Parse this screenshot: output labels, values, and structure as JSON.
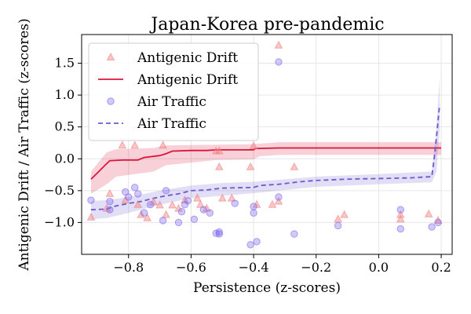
{
  "chart_data": {
    "type": "scatter",
    "title": "Japan-Korea pre-pandemic",
    "xlabel": "Persistence (z-scores)",
    "ylabel": "Antigenic Drift / Air Traffic (z-scores)",
    "xlim": [
      -0.95,
      0.235
    ],
    "ylim": [
      -1.5,
      1.95
    ],
    "xticks": [
      -0.8,
      -0.6,
      -0.4,
      -0.2,
      0.0,
      0.2
    ],
    "xtick_labels": [
      "−0.8",
      "−0.6",
      "−0.4",
      "−0.2",
      "0.0",
      "0.2"
    ],
    "yticks": [
      -1.0,
      -0.5,
      0.0,
      0.5,
      1.0,
      1.5
    ],
    "ytick_labels": [
      "−1.0",
      "−0.5",
      "0.0",
      "0.5",
      "1.0",
      "1.5"
    ],
    "grid": true,
    "legend_position": "top-left",
    "legend": [
      {
        "label": "Antigenic Drift",
        "kind": "marker-triangle",
        "color": "#f08080"
      },
      {
        "label": "Antigenic Drift",
        "kind": "line-solid",
        "color": "#dc143c"
      },
      {
        "label": "Air Traffic",
        "kind": "marker-circle",
        "color": "#7b68ee"
      },
      {
        "label": "Air Traffic",
        "kind": "line-dashed",
        "color": "#6a5acd"
      }
    ],
    "series": [
      {
        "name": "Antigenic Drift",
        "kind": "scatter",
        "marker": "triangle",
        "color": "#f08080",
        "points": [
          [
            -0.92,
            -0.92
          ],
          [
            -0.87,
            -0.78
          ],
          [
            -0.86,
            -0.55
          ],
          [
            -0.82,
            0.21
          ],
          [
            -0.81,
            -0.65
          ],
          [
            -0.78,
            0.21
          ],
          [
            -0.77,
            -0.72
          ],
          [
            -0.76,
            -0.88
          ],
          [
            -0.74,
            -0.93
          ],
          [
            -0.72,
            -0.68
          ],
          [
            -0.7,
            -0.73
          ],
          [
            -0.69,
            0.21
          ],
          [
            -0.68,
            -0.88
          ],
          [
            -0.66,
            -0.73
          ],
          [
            -0.64,
            -0.78
          ],
          [
            -0.62,
            -0.65
          ],
          [
            -0.58,
            -0.62
          ],
          [
            -0.57,
            -0.72
          ],
          [
            -0.55,
            -0.78
          ],
          [
            -0.52,
            0.12
          ],
          [
            -0.51,
            0.12
          ],
          [
            -0.51,
            -0.13
          ],
          [
            -0.5,
            -0.62
          ],
          [
            -0.47,
            -0.62
          ],
          [
            -0.41,
            -0.13
          ],
          [
            -0.4,
            0.2
          ],
          [
            -0.39,
            -0.72
          ],
          [
            -0.34,
            -0.72
          ],
          [
            -0.32,
            1.78
          ],
          [
            -0.32,
            -0.67
          ],
          [
            -0.27,
            -0.13
          ],
          [
            -0.13,
            -0.95
          ],
          [
            -0.11,
            -0.88
          ],
          [
            0.07,
            -0.88
          ],
          [
            0.07,
            -0.95
          ],
          [
            0.16,
            -0.87
          ],
          [
            0.19,
            -0.97
          ]
        ]
      },
      {
        "name": "Antigenic Drift",
        "kind": "line",
        "color": "#dc143c",
        "line": [
          [
            -0.92,
            -0.32
          ],
          [
            -0.895,
            -0.2
          ],
          [
            -0.875,
            -0.1
          ],
          [
            -0.86,
            -0.03
          ],
          [
            -0.82,
            -0.02
          ],
          [
            -0.77,
            -0.02
          ],
          [
            -0.75,
            0.02
          ],
          [
            -0.7,
            0.05
          ],
          [
            -0.68,
            0.08
          ],
          [
            -0.66,
            0.12
          ],
          [
            -0.6,
            0.13
          ],
          [
            -0.55,
            0.13
          ],
          [
            -0.52,
            0.14
          ],
          [
            -0.4,
            0.14
          ],
          [
            -0.395,
            0.16
          ],
          [
            -0.32,
            0.17
          ],
          [
            -0.2,
            0.17
          ],
          [
            0.0,
            0.17
          ],
          [
            0.2,
            0.17
          ]
        ],
        "band_upper": [
          [
            -0.92,
            -0.2
          ],
          [
            -0.87,
            0.1
          ],
          [
            -0.84,
            0.15
          ],
          [
            -0.72,
            0.17
          ],
          [
            -0.68,
            0.21
          ],
          [
            -0.52,
            0.22
          ],
          [
            -0.4,
            0.23
          ],
          [
            -0.32,
            0.26
          ],
          [
            0.0,
            0.26
          ],
          [
            0.2,
            0.26
          ]
        ],
        "band_lower": [
          [
            -0.92,
            -0.55
          ],
          [
            -0.87,
            -0.4
          ],
          [
            -0.84,
            -0.28
          ],
          [
            -0.72,
            -0.2
          ],
          [
            -0.68,
            -0.1
          ],
          [
            -0.52,
            -0.02
          ],
          [
            -0.4,
            -0.01
          ],
          [
            -0.38,
            0.04
          ],
          [
            -0.32,
            0.06
          ],
          [
            0.0,
            0.06
          ],
          [
            0.2,
            0.06
          ]
        ]
      },
      {
        "name": "Air Traffic",
        "kind": "scatter",
        "marker": "circle",
        "color": "#7b68ee",
        "points": [
          [
            -0.92,
            -0.65
          ],
          [
            -0.86,
            -0.67
          ],
          [
            -0.86,
            -0.8
          ],
          [
            -0.81,
            -0.52
          ],
          [
            -0.8,
            -0.6
          ],
          [
            -0.78,
            -0.45
          ],
          [
            -0.77,
            -0.55
          ],
          [
            -0.75,
            -0.85
          ],
          [
            -0.73,
            -0.72
          ],
          [
            -0.69,
            -0.97
          ],
          [
            -0.68,
            -0.5
          ],
          [
            -0.64,
            -1.0
          ],
          [
            -0.63,
            -0.83
          ],
          [
            -0.62,
            -0.72
          ],
          [
            -0.61,
            -0.66
          ],
          [
            -0.59,
            -0.95
          ],
          [
            -0.56,
            -0.8
          ],
          [
            -0.54,
            -0.85
          ],
          [
            -0.52,
            -1.17
          ],
          [
            -0.51,
            -1.15
          ],
          [
            -0.51,
            -1.18
          ],
          [
            -0.46,
            -0.7
          ],
          [
            -0.41,
            -1.35
          ],
          [
            -0.4,
            -0.75
          ],
          [
            -0.4,
            -0.85
          ],
          [
            -0.39,
            -1.3
          ],
          [
            -0.32,
            -0.6
          ],
          [
            -0.32,
            1.52
          ],
          [
            -0.27,
            -1.18
          ],
          [
            -0.13,
            -1.05
          ],
          [
            0.07,
            -0.8
          ],
          [
            0.07,
            -1.1
          ],
          [
            0.17,
            -1.07
          ],
          [
            0.19,
            -1.0
          ]
        ]
      },
      {
        "name": "Air Traffic",
        "kind": "line",
        "color": "#6a5acd",
        "line": [
          [
            -0.92,
            -0.8
          ],
          [
            -0.87,
            -0.79
          ],
          [
            -0.84,
            -0.74
          ],
          [
            -0.8,
            -0.7
          ],
          [
            -0.76,
            -0.67
          ],
          [
            -0.72,
            -0.62
          ],
          [
            -0.68,
            -0.58
          ],
          [
            -0.64,
            -0.55
          ],
          [
            -0.6,
            -0.5
          ],
          [
            -0.55,
            -0.49
          ],
          [
            -0.5,
            -0.46
          ],
          [
            -0.4,
            -0.45
          ],
          [
            -0.38,
            -0.42
          ],
          [
            -0.32,
            -0.4
          ],
          [
            -0.25,
            -0.36
          ],
          [
            -0.2,
            -0.34
          ],
          [
            -0.1,
            -0.32
          ],
          [
            0.0,
            -0.31
          ],
          [
            0.1,
            -0.3
          ],
          [
            0.17,
            -0.28
          ],
          [
            0.18,
            0.1
          ],
          [
            0.195,
            0.85
          ]
        ],
        "band_upper": [
          [
            -0.92,
            -0.66
          ],
          [
            -0.87,
            -0.65
          ],
          [
            -0.8,
            -0.6
          ],
          [
            -0.7,
            -0.5
          ],
          [
            -0.6,
            -0.42
          ],
          [
            -0.5,
            -0.38
          ],
          [
            -0.4,
            -0.36
          ],
          [
            -0.32,
            -0.33
          ],
          [
            -0.2,
            -0.28
          ],
          [
            0.0,
            -0.24
          ],
          [
            0.17,
            -0.2
          ],
          [
            0.185,
            0.5
          ],
          [
            0.195,
            1.28
          ]
        ],
        "band_lower": [
          [
            -0.92,
            -0.95
          ],
          [
            -0.87,
            -0.93
          ],
          [
            -0.8,
            -0.85
          ],
          [
            -0.7,
            -0.72
          ],
          [
            -0.6,
            -0.62
          ],
          [
            -0.5,
            -0.58
          ],
          [
            -0.4,
            -0.54
          ],
          [
            -0.32,
            -0.5
          ],
          [
            -0.2,
            -0.44
          ],
          [
            0.0,
            -0.4
          ],
          [
            0.17,
            -0.37
          ],
          [
            0.185,
            -0.2
          ],
          [
            0.195,
            0.45
          ]
        ]
      }
    ]
  }
}
